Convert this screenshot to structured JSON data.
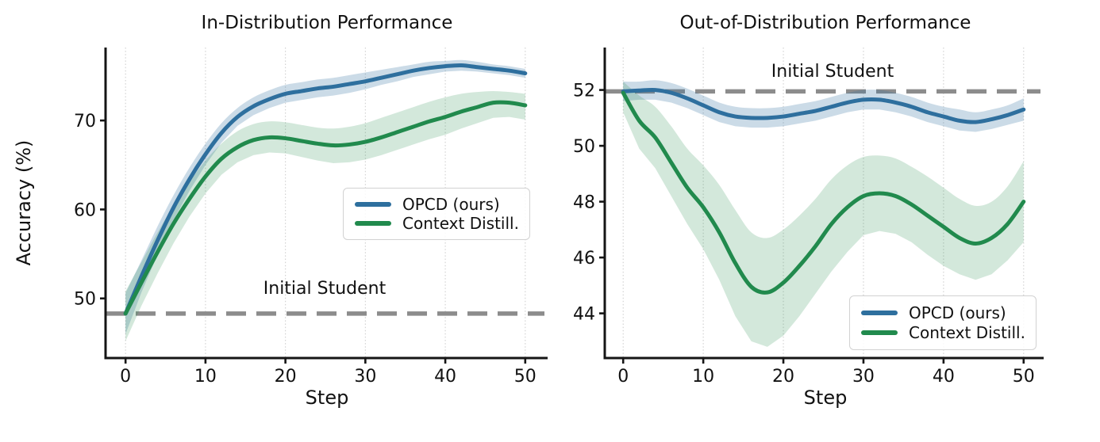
{
  "figure": {
    "background": "#ffffff"
  },
  "colors": {
    "opcd_blue": "#2e6f9e",
    "context_green": "#218a4d",
    "opcd_band": "rgba(46,111,158,0.25)",
    "context_band": "rgba(33,138,77,0.20)",
    "ref_gray": "#8c8c8c",
    "grid_gray": "#cfcfcf",
    "spine_black": "#151515"
  },
  "chart_data": [
    {
      "type": "line",
      "title": "In-Distribution Performance",
      "xlabel": "Step",
      "ylabel": "Accuracy (%)",
      "xlim": [
        -2.5,
        52.8
      ],
      "ylim": [
        43.3,
        78.2
      ],
      "xticks": [
        0,
        10,
        20,
        30,
        40,
        50
      ],
      "yticks": [
        50,
        60,
        70
      ],
      "grid": "vertical-dotted",
      "legend_position": "center-right",
      "ref_line": {
        "label": "Initial Student",
        "value": 48.3,
        "style": "dashed",
        "color": "#8c8c8c"
      },
      "x": [
        0,
        2,
        4,
        6,
        8,
        10,
        12,
        14,
        16,
        18,
        20,
        22,
        24,
        26,
        28,
        30,
        32,
        34,
        36,
        38,
        40,
        42,
        44,
        46,
        48,
        50
      ],
      "series": [
        {
          "name": "OPCD (ours)",
          "color": "#2e6f9e",
          "band_color": "rgba(46,111,158,0.25)",
          "values": [
            48.3,
            52.5,
            56.5,
            60.2,
            63.4,
            66.2,
            68.6,
            70.4,
            71.6,
            72.4,
            73.0,
            73.3,
            73.6,
            73.8,
            74.1,
            74.4,
            74.8,
            75.2,
            75.6,
            75.9,
            76.1,
            76.2,
            76.0,
            75.8,
            75.6,
            75.3
          ],
          "band_lo": [
            46.0,
            50.7,
            54.9,
            58.8,
            62.1,
            65.0,
            67.5,
            69.4,
            70.6,
            71.4,
            72.0,
            72.3,
            72.6,
            72.8,
            73.1,
            73.5,
            74.0,
            74.4,
            74.9,
            75.2,
            75.5,
            75.6,
            75.5,
            75.3,
            75.1,
            74.8
          ],
          "band_hi": [
            50.6,
            54.3,
            58.1,
            61.6,
            64.7,
            67.4,
            69.7,
            71.4,
            72.6,
            73.4,
            74.0,
            74.3,
            74.6,
            74.8,
            75.1,
            75.4,
            75.7,
            76.0,
            76.3,
            76.6,
            76.7,
            76.8,
            76.6,
            76.3,
            76.1,
            75.8
          ]
        },
        {
          "name": "Context Distill.",
          "color": "#218a4d",
          "band_color": "rgba(33,138,77,0.20)",
          "values": [
            48.3,
            51.8,
            55.2,
            58.4,
            61.2,
            63.7,
            65.7,
            67.0,
            67.8,
            68.1,
            68.0,
            67.7,
            67.4,
            67.2,
            67.3,
            67.6,
            68.1,
            68.7,
            69.3,
            69.9,
            70.4,
            71.0,
            71.5,
            72.0,
            72.0,
            71.7
          ],
          "band_lo": [
            45.2,
            49.2,
            52.8,
            56.2,
            59.2,
            61.8,
            63.9,
            65.3,
            66.1,
            66.4,
            66.3,
            65.9,
            65.5,
            65.2,
            65.3,
            65.6,
            66.1,
            66.7,
            67.3,
            67.9,
            68.4,
            69.1,
            69.7,
            70.3,
            70.4,
            70.1
          ],
          "band_hi": [
            50.8,
            54.1,
            57.4,
            60.4,
            63.1,
            65.5,
            67.4,
            68.8,
            69.6,
            69.9,
            69.8,
            69.5,
            69.2,
            69.1,
            69.3,
            69.7,
            70.3,
            70.9,
            71.5,
            72.1,
            72.6,
            73.0,
            73.2,
            73.3,
            73.2,
            73.0
          ]
        }
      ]
    },
    {
      "type": "line",
      "title": "Out-of-Distribution Performance",
      "xlabel": "Step",
      "ylabel": "",
      "xlim": [
        -2.3,
        52.5
      ],
      "ylim": [
        42.4,
        53.52
      ],
      "xticks": [
        0,
        10,
        20,
        30,
        40,
        50
      ],
      "yticks": [
        44,
        46,
        48,
        50,
        52
      ],
      "grid": "vertical-dotted",
      "legend_position": "lower-right",
      "ref_line": {
        "label": "Initial Student",
        "value": 51.95,
        "style": "dashed",
        "color": "#8c8c8c"
      },
      "x": [
        0,
        2,
        4,
        6,
        8,
        10,
        12,
        14,
        16,
        18,
        20,
        22,
        24,
        26,
        28,
        30,
        32,
        34,
        36,
        38,
        40,
        42,
        44,
        46,
        48,
        50
      ],
      "series": [
        {
          "name": "OPCD (ours)",
          "color": "#2e6f9e",
          "band_color": "rgba(46,111,158,0.25)",
          "values": [
            51.95,
            51.98,
            52.0,
            51.9,
            51.7,
            51.45,
            51.2,
            51.05,
            51.0,
            51.0,
            51.05,
            51.15,
            51.25,
            51.4,
            51.55,
            51.65,
            51.65,
            51.55,
            51.4,
            51.2,
            51.05,
            50.9,
            50.85,
            50.95,
            51.1,
            51.3
          ],
          "band_lo": [
            51.6,
            51.65,
            51.65,
            51.55,
            51.35,
            51.1,
            50.85,
            50.7,
            50.65,
            50.65,
            50.7,
            50.8,
            50.9,
            51.05,
            51.2,
            51.3,
            51.3,
            51.2,
            51.05,
            50.85,
            50.7,
            50.55,
            50.5,
            50.6,
            50.75,
            50.9
          ],
          "band_hi": [
            52.3,
            52.3,
            52.35,
            52.25,
            52.05,
            51.8,
            51.55,
            51.4,
            51.35,
            51.35,
            51.4,
            51.5,
            51.6,
            51.75,
            51.9,
            52.0,
            52.0,
            51.9,
            51.75,
            51.55,
            51.4,
            51.3,
            51.2,
            51.3,
            51.45,
            51.7
          ]
        },
        {
          "name": "Context Distill.",
          "color": "#218a4d",
          "band_color": "rgba(33,138,77,0.20)",
          "values": [
            51.9,
            50.9,
            50.3,
            49.4,
            48.5,
            47.8,
            46.9,
            45.8,
            44.95,
            44.75,
            45.1,
            45.7,
            46.4,
            47.2,
            47.8,
            48.2,
            48.3,
            48.2,
            47.9,
            47.5,
            47.1,
            46.7,
            46.5,
            46.7,
            47.2,
            48.0
          ],
          "band_lo": [
            51.2,
            49.9,
            49.2,
            48.2,
            47.2,
            46.3,
            45.2,
            43.9,
            43.0,
            42.8,
            43.2,
            43.9,
            44.7,
            45.5,
            46.2,
            46.8,
            46.95,
            46.85,
            46.55,
            46.1,
            45.7,
            45.4,
            45.2,
            45.4,
            45.9,
            46.55
          ],
          "band_hi": [
            52.3,
            51.8,
            51.4,
            50.7,
            49.9,
            49.3,
            48.6,
            47.7,
            46.9,
            46.7,
            47.0,
            47.5,
            48.1,
            48.8,
            49.3,
            49.6,
            49.65,
            49.55,
            49.25,
            48.9,
            48.5,
            48.1,
            47.85,
            48.0,
            48.55,
            49.45
          ]
        }
      ]
    }
  ]
}
